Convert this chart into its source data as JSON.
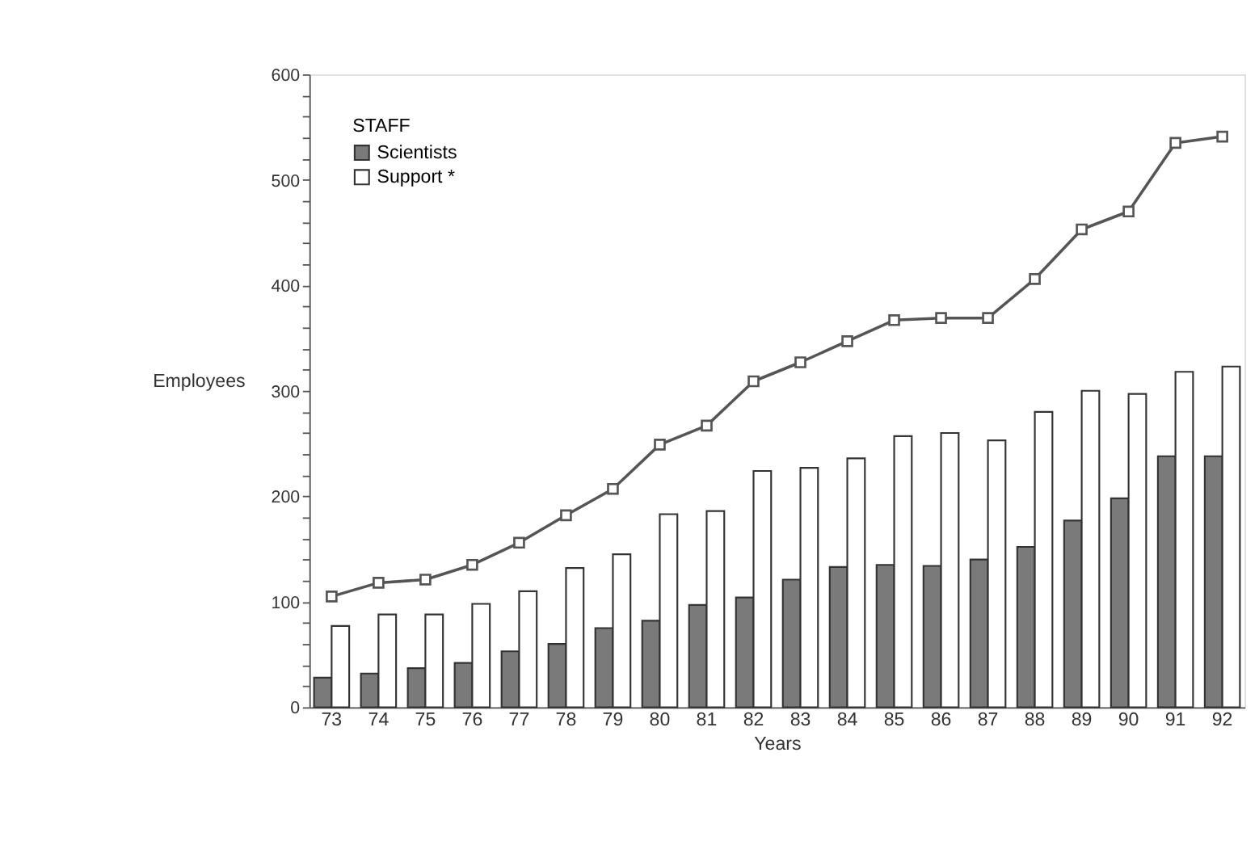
{
  "chart_data": {
    "type": "bar",
    "xlabel": "Years",
    "ylabel": "Employees",
    "legend_title": "STAFF",
    "legend": "top left",
    "grid": false,
    "categories": [
      "73",
      "74",
      "75",
      "76",
      "77",
      "78",
      "79",
      "80",
      "81",
      "82",
      "83",
      "84",
      "85",
      "86",
      "87",
      "88",
      "89",
      "90",
      "91",
      "92"
    ],
    "series": [
      {
        "name": "Scientists",
        "color": "#7a7a7a",
        "values": [
          28,
          32,
          37,
          42,
          53,
          60,
          75,
          82,
          97,
          104,
          121,
          133,
          135,
          134,
          140,
          152,
          177,
          198,
          238,
          238
        ]
      },
      {
        "name": "Support *",
        "color": "#ffffff",
        "values": [
          77,
          88,
          88,
          98,
          110,
          132,
          145,
          183,
          186,
          224,
          227,
          236,
          257,
          260,
          253,
          280,
          300,
          297,
          318,
          323
        ]
      },
      {
        "type": "line",
        "color": "#555555",
        "marker": "square",
        "line_style": "solid",
        "values": [
          105,
          118,
          121,
          135,
          156,
          182,
          207,
          249,
          267,
          309,
          327,
          347,
          367,
          369,
          369,
          406,
          453,
          470,
          535,
          541
        ]
      }
    ],
    "ylim": [
      0,
      600
    ],
    "yticks": [
      0,
      {
        "value": 20,
        "label": null
      },
      {
        "value": 40,
        "label": null
      },
      {
        "value": 60,
        "label": null
      },
      {
        "value": 80,
        "label": null
      },
      100,
      {
        "value": 120,
        "label": null
      },
      {
        "value": 140,
        "label": null
      },
      {
        "value": 160,
        "label": null
      },
      {
        "value": 180,
        "label": null
      },
      200,
      {
        "value": 220,
        "label": null
      },
      {
        "value": 240,
        "label": null
      },
      {
        "value": 260,
        "label": null
      },
      {
        "value": 280,
        "label": null
      },
      300,
      {
        "value": 320,
        "label": null
      },
      {
        "value": 340,
        "label": null
      },
      {
        "value": 360,
        "label": null
      },
      {
        "value": 380,
        "label": null
      },
      400,
      {
        "value": 420,
        "label": null
      },
      {
        "value": 440,
        "label": null
      },
      {
        "value": 460,
        "label": null
      },
      {
        "value": 480,
        "label": null
      },
      500,
      {
        "value": 520,
        "label": null
      },
      {
        "value": 540,
        "label": null
      },
      {
        "value": 560,
        "label": null
      },
      {
        "value": 580,
        "label": null
      },
      600
    ]
  }
}
